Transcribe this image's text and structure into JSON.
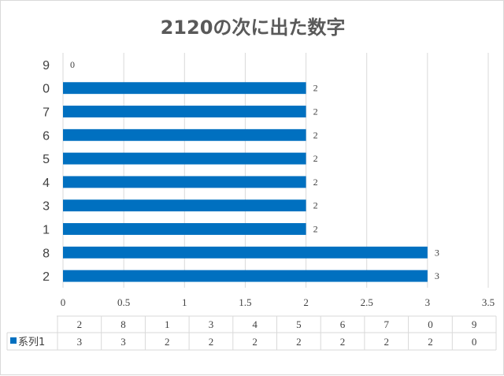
{
  "chart_data": {
    "type": "bar",
    "orientation": "horizontal",
    "title": "2120の次に出た数字",
    "categories": [
      "2",
      "8",
      "1",
      "3",
      "4",
      "5",
      "6",
      "7",
      "0",
      "9"
    ],
    "series": [
      {
        "name": "系列1",
        "values": [
          3,
          3,
          2,
          2,
          2,
          2,
          2,
          2,
          2,
          0
        ],
        "color": "#0070c0"
      }
    ],
    "xlim": [
      0,
      3.5
    ],
    "xticks": [
      "0",
      "0.5",
      "1",
      "1.5",
      "2",
      "2.5",
      "3",
      "3.5"
    ],
    "grid": true,
    "data_labels": true,
    "data_table": true,
    "legend": "data-table"
  }
}
